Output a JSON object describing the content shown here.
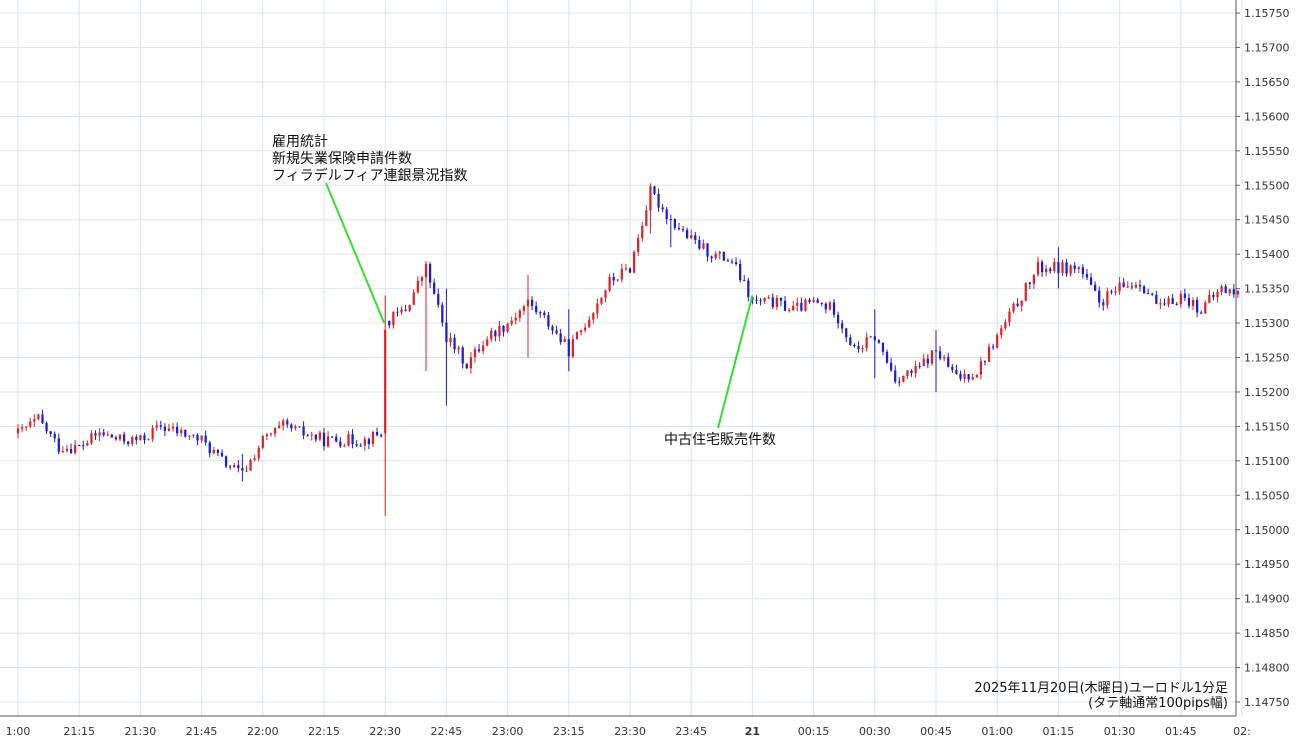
{
  "chart_data": {
    "type": "candlestick",
    "x_tick_labels": [
      "1:00",
      "21:15",
      "21:30",
      "21:45",
      "22:00",
      "22:15",
      "22:30",
      "22:45",
      "23:00",
      "23:15",
      "23:30",
      "23:45",
      "21",
      "00:15",
      "00:30",
      "00:45",
      "01:00",
      "01:15",
      "01:30",
      "01:45",
      "02:"
    ],
    "y_tick_labels": [
      "1.15750",
      "1.15700",
      "1.15650",
      "1.15600",
      "1.15550",
      "1.15500",
      "1.15450",
      "1.15400",
      "1.15350",
      "1.15300",
      "1.15250",
      "1.15200",
      "1.15150",
      "1.15100",
      "1.15050",
      "1.15000",
      "1.14950",
      "1.14900",
      "1.14850",
      "1.14800",
      "1.14750"
    ],
    "ylim": [
      1.1475,
      1.1577
    ],
    "grid": true,
    "colors": {
      "up": "#d8232a",
      "down": "#1a1adb",
      "grid": "#dde3ec",
      "annotation_line": "#33dd33"
    },
    "annotations": [
      {
        "lines": [
          "雇用統計",
          "新規失業保険申請件数",
          "フィラデルフィア連銀景況指数"
        ],
        "point_time": "22:30"
      },
      {
        "lines": [
          "中古住宅販売件数"
        ],
        "point_time": "00:00"
      }
    ],
    "caption": [
      "2025年11月20日(木曜日)ユーロドル1分足",
      "(タテ軸通常100pips幅)"
    ],
    "anchors": [
      [
        "21:00",
        1.1514
      ],
      [
        "21:05",
        1.1516
      ],
      [
        "21:10",
        1.1512
      ],
      [
        "21:15",
        1.1512
      ],
      [
        "21:20",
        1.1514
      ],
      [
        "21:25",
        1.1513
      ],
      [
        "21:30",
        1.1513
      ],
      [
        "21:35",
        1.1515
      ],
      [
        "21:40",
        1.1514
      ],
      [
        "21:45",
        1.1513
      ],
      [
        "21:50",
        1.151
      ],
      [
        "21:55",
        1.1508
      ],
      [
        "22:00",
        1.1513
      ],
      [
        "22:05",
        1.1515
      ],
      [
        "22:10",
        1.1514
      ],
      [
        "22:15",
        1.1513
      ],
      [
        "22:20",
        1.1513
      ],
      [
        "22:25",
        1.1513
      ],
      [
        "22:29",
        1.1514
      ],
      [
        "22:30",
        1.153
      ],
      [
        "22:35",
        1.1532
      ],
      [
        "22:40",
        1.1538
      ],
      [
        "22:45",
        1.1528
      ],
      [
        "22:50",
        1.1524
      ],
      [
        "22:55",
        1.1528
      ],
      [
        "23:00",
        1.153
      ],
      [
        "23:05",
        1.1533
      ],
      [
        "23:10",
        1.153
      ],
      [
        "23:15",
        1.1526
      ],
      [
        "23:20",
        1.1531
      ],
      [
        "23:25",
        1.1536
      ],
      [
        "23:30",
        1.1538
      ],
      [
        "23:35",
        1.1549
      ],
      [
        "23:40",
        1.1545
      ],
      [
        "23:45",
        1.1542
      ],
      [
        "23:50",
        1.154
      ],
      [
        "23:55",
        1.1539
      ],
      [
        "00:00",
        1.1533
      ],
      [
        "00:05",
        1.1533
      ],
      [
        "00:10",
        1.1532
      ],
      [
        "00:15",
        1.1533
      ],
      [
        "00:20",
        1.1532
      ],
      [
        "00:25",
        1.1526
      ],
      [
        "00:30",
        1.1528
      ],
      [
        "00:35",
        1.1522
      ],
      [
        "00:40",
        1.1523
      ],
      [
        "00:45",
        1.1526
      ],
      [
        "00:50",
        1.1522
      ],
      [
        "00:55",
        1.1523
      ],
      [
        "01:00",
        1.1528
      ],
      [
        "01:05",
        1.1533
      ],
      [
        "01:10",
        1.1538
      ],
      [
        "01:15",
        1.1538
      ],
      [
        "01:20",
        1.1538
      ],
      [
        "01:25",
        1.1533
      ],
      [
        "01:30",
        1.1535
      ],
      [
        "01:35",
        1.1536
      ],
      [
        "01:40",
        1.1532
      ],
      [
        "01:45",
        1.1534
      ],
      [
        "01:50",
        1.1532
      ],
      [
        "01:55",
        1.1535
      ],
      [
        "02:00",
        1.1534
      ]
    ],
    "extremes": [
      [
        "22:30",
        1.1502,
        1.1534
      ],
      [
        "22:40",
        1.1523,
        1.1539
      ],
      [
        "22:45",
        1.1518,
        1.1535
      ],
      [
        "23:05",
        1.1525,
        1.1537
      ],
      [
        "23:15",
        1.1523,
        1.1532
      ],
      [
        "23:35",
        1.1543,
        1.155
      ],
      [
        "23:40",
        1.1541,
        1.1545
      ],
      [
        "21:55",
        1.1507,
        1.1511
      ],
      [
        "01:15",
        1.1535,
        1.1541
      ],
      [
        "00:45",
        1.152,
        1.1529
      ],
      [
        "00:30",
        1.1522,
        1.1532
      ]
    ]
  }
}
